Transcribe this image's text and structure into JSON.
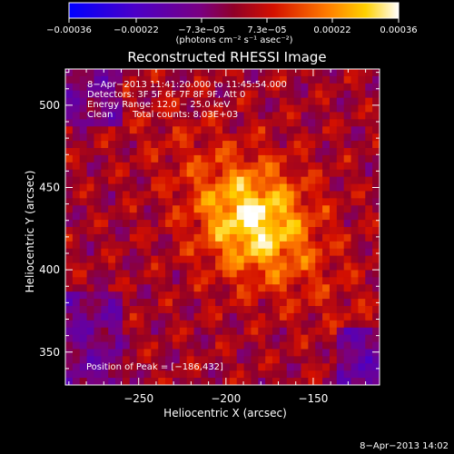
{
  "chart_data": {
    "type": "heatmap",
    "title": "Reconstructed RHESSI Image",
    "xlabel": "Heliocentric X (arcsec)",
    "ylabel": "Heliocentric Y (arcsec)",
    "x_ticks": [
      "−250",
      "−200",
      "−150"
    ],
    "x_tick_values": [
      -250,
      -200,
      -150
    ],
    "y_ticks": [
      "350",
      "400",
      "450",
      "500"
    ],
    "y_tick_values": [
      350,
      400,
      450,
      500
    ],
    "xlim": [
      -292,
      -112
    ],
    "ylim": [
      330,
      522
    ],
    "colorbar": {
      "ticks": [
        "−0.00036",
        "−0.00022",
        "−7.3e−05",
        "7.3e−05",
        "0.00022",
        "0.00036"
      ],
      "range": [
        -0.00036,
        0.00036
      ],
      "unit": "(photons cm⁻² s⁻¹ asec⁻²)"
    },
    "annotations": [
      "8−Apr−2013 11:41:20.000 to 11:45:54.000",
      "Detectors: 3F 5F 6F 7F 8F 9F, Att 0",
      "Energy Range: 12.0 − 25.0 keV",
      "Clean",
      "Total counts: 8.03E+03",
      "Position of Peak = [−186,432]"
    ],
    "peak": {
      "x": -186,
      "y": 432
    },
    "footer_date": "8−Apr−2013 14:02",
    "grid": false
  }
}
